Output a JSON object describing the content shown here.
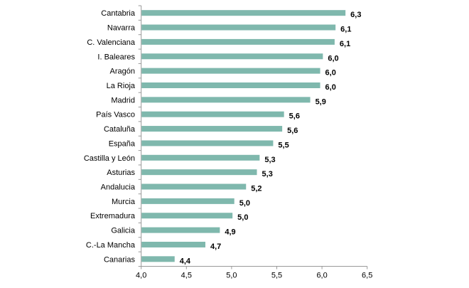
{
  "chart_data": {
    "type": "bar",
    "orientation": "horizontal",
    "categories": [
      "Cantabria",
      "Navarra",
      "C. Valenciana",
      "I. Baleares",
      "Aragón",
      "La Rioja",
      "Madrid",
      "País Vasco",
      "Cataluña",
      "España",
      "Castilla y León",
      "Asturias",
      "Andalucia",
      "Murcia",
      "Extremadura",
      "Galicia",
      "C.-La Mancha",
      "Canarias"
    ],
    "values": [
      6.26,
      6.15,
      6.14,
      6.01,
      5.98,
      5.98,
      5.87,
      5.58,
      5.56,
      5.46,
      5.31,
      5.28,
      5.16,
      5.03,
      5.01,
      4.87,
      4.71,
      4.37
    ],
    "data_labels": [
      "6,3",
      "6,1",
      "6,1",
      "6,0",
      "6,0",
      "6,0",
      "5,9",
      "5,6",
      "5,6",
      "5,5",
      "5,3",
      "5,3",
      "5,2",
      "5,0",
      "5,0",
      "4,9",
      "4,7",
      "4,4"
    ],
    "xlim": [
      4.0,
      6.5
    ],
    "x_ticks": [
      4.0,
      4.5,
      5.0,
      5.5,
      6.0,
      6.5
    ],
    "x_tick_labels": [
      "4,0",
      "4,5",
      "5,0",
      "5,5",
      "6,0",
      "6,5"
    ],
    "title": "",
    "xlabel": "",
    "ylabel": "",
    "grid": false,
    "legend": "none",
    "bar_color": "#7fb8ad"
  }
}
